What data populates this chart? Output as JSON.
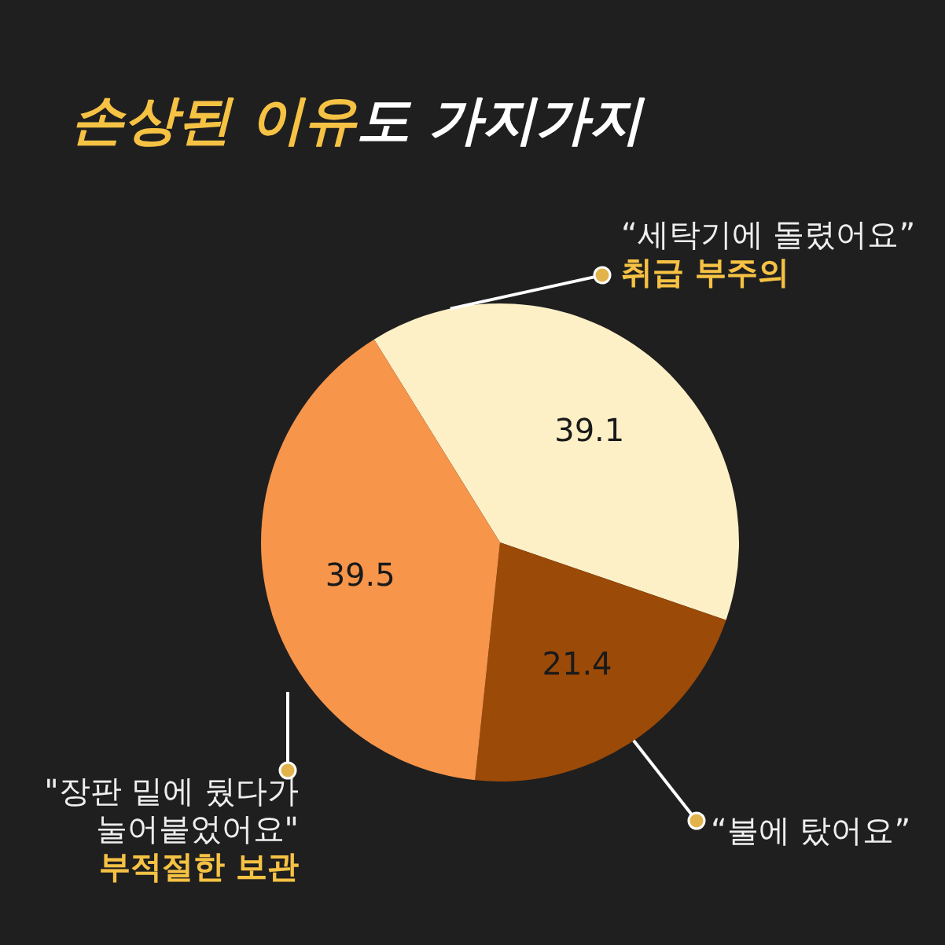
{
  "chart_data": {
    "type": "pie",
    "title": "**손상된 이유**도 가지가지",
    "categories": [
      "“세탁기에 돌렸어요”",
      "“불에 탔어요”",
      "\"장판 밑에 뒀다가 눌어붙었어요\""
    ],
    "values": [
      39.1,
      21.4,
      39.5
    ],
    "colors": [
      "#fdf0c6",
      "#9b4a08",
      "#f7954b"
    ],
    "data_labels": true,
    "annotations": [
      {
        "text": "취급 부주의",
        "x": "“세탁기에 돌렸어요”"
      },
      {
        "text": "부적절한 보관",
        "x": "\"장판 밑에 뒀다가 눌어붙었어요\""
      }
    ]
  }
}
